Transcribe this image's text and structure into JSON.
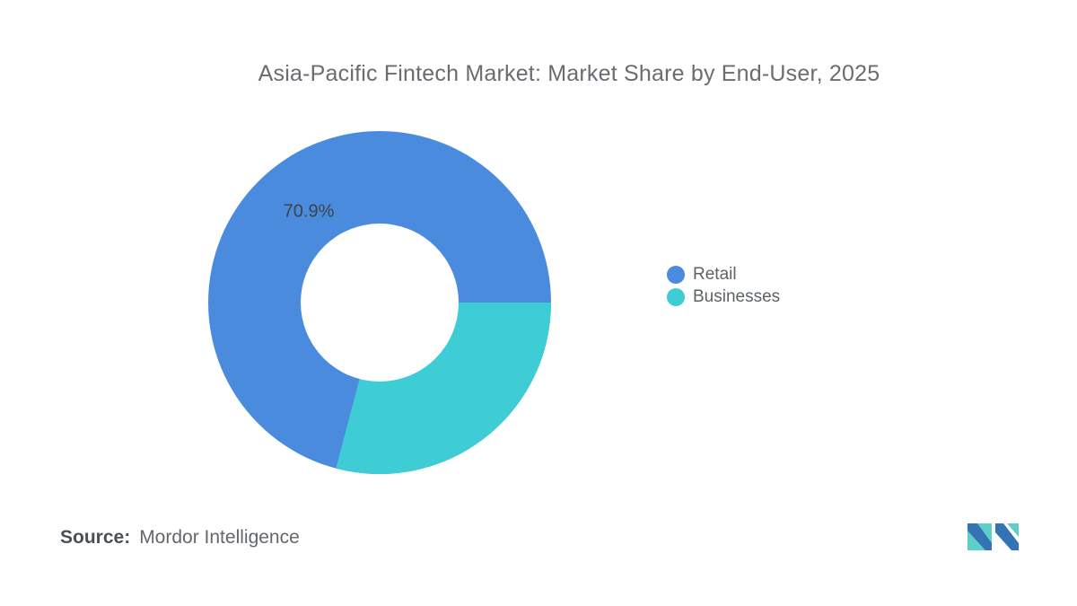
{
  "chart_data": {
    "type": "pie",
    "title": "Asia-Pacific Fintech Market: Market Share by End-User, 2025",
    "categories": [
      "Retail",
      "Businesses"
    ],
    "values": [
      70.9,
      29.1
    ],
    "colors": [
      "#4A8BDE",
      "#3ECDD4"
    ],
    "donut": true,
    "inner_radius_ratio": 0.46,
    "data_label": "70.9%",
    "data_label_color": "#3e4347",
    "legend_position": "right",
    "start_angle_deg": 0,
    "direction": "clockwise",
    "background": "#ffffff"
  },
  "source": {
    "prefix": "Source:",
    "name": "Mordor Intelligence"
  },
  "logo": {
    "alt": "mordor-intelligence-logo",
    "colors": {
      "teal": "#5ECFC8",
      "blue": "#3474B4"
    }
  }
}
